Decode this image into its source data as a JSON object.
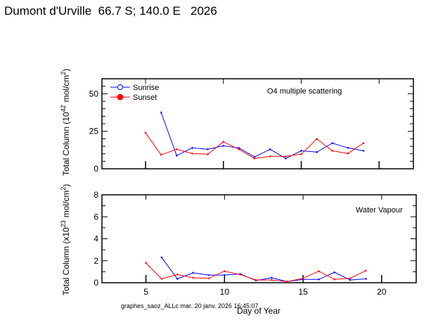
{
  "title": "Dumont d'Urville  66.7 S; 140.0 E   2026",
  "footer": "graphes_saoz_ALLc mar. 20 janv. 2026 16:45:07",
  "colors": {
    "sunrise": "#0000ff",
    "sunset": "#ff0000"
  },
  "chart_data": [
    {
      "type": "line",
      "annotation": "O4 multiple scattering",
      "ylabel_main": "Total Column (10",
      "ylabel_exp": "42",
      "ylabel_unit": "mol/cm",
      "ylabel_unit_exp": "2",
      "ylabel_close": ")",
      "xlim": [
        2.2,
        22.2
      ],
      "ylim": [
        0,
        60
      ],
      "yticks": [
        0,
        25,
        50
      ],
      "ytick_labels": [
        "0",
        "25",
        "50"
      ],
      "xticks": [
        5,
        10,
        15,
        20
      ],
      "legend": [
        "Sunrise",
        "Sunset"
      ],
      "legend_position": "top-left",
      "series": [
        {
          "name": "Sunrise",
          "x": [
            6,
            7,
            8,
            9,
            10,
            11,
            12,
            13,
            14,
            15,
            16,
            17,
            18,
            19
          ],
          "values": [
            37.5,
            8.8,
            13.9,
            13,
            15.3,
            13.9,
            7.9,
            13,
            6.9,
            12,
            11.1,
            17.1,
            13.9,
            12
          ]
        },
        {
          "name": "Sunset",
          "x": [
            5,
            6,
            7,
            8,
            9,
            10,
            11,
            12,
            13,
            14,
            15,
            16,
            17,
            18,
            19
          ],
          "values": [
            24,
            9.3,
            13,
            10.2,
            9.7,
            18,
            13,
            6.9,
            8.3,
            8.3,
            9.7,
            19.9,
            12,
            10.2,
            17.1
          ]
        }
      ]
    },
    {
      "type": "line",
      "annotation": "Water Vapour",
      "ylabel_main": "Total Column (x10",
      "ylabel_exp": "23",
      "ylabel_unit": "mol/cm",
      "ylabel_unit_exp": "2",
      "ylabel_close": ")",
      "xlabel": "Day of Year",
      "xlim": [
        2.2,
        22.2
      ],
      "ylim": [
        0,
        8
      ],
      "yticks": [
        0,
        2,
        4,
        6,
        8
      ],
      "ytick_labels": [
        "0",
        "2",
        "4",
        "6",
        "8"
      ],
      "xticks": [
        5,
        10,
        15,
        20
      ],
      "xtick_labels": [
        "5",
        "10",
        "15",
        "20"
      ],
      "series": [
        {
          "name": "Sunrise",
          "x": [
            6,
            7,
            8,
            9,
            10,
            11,
            12,
            13,
            14,
            15,
            16,
            17,
            18,
            19
          ],
          "values": [
            2.3,
            0.35,
            0.9,
            0.7,
            0.7,
            0.8,
            0.2,
            0.45,
            0.1,
            0.3,
            0.3,
            0.95,
            0.25,
            0.35
          ]
        },
        {
          "name": "Sunset",
          "x": [
            5,
            6,
            7,
            8,
            9,
            10,
            11,
            12,
            13,
            14,
            15,
            16,
            17,
            18,
            19
          ],
          "values": [
            1.8,
            0.35,
            0.75,
            0.45,
            0.4,
            1.05,
            0.75,
            0.25,
            0.25,
            0.1,
            0.4,
            1.05,
            0.3,
            0.4,
            1.1
          ]
        }
      ]
    }
  ]
}
